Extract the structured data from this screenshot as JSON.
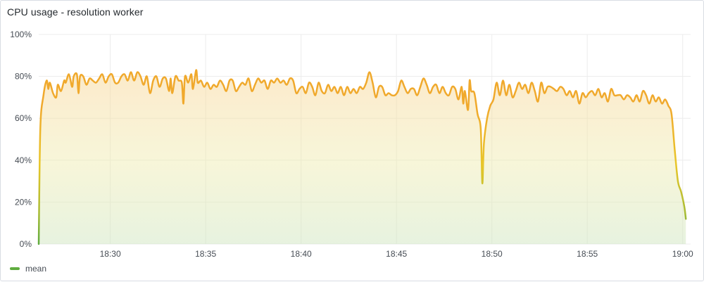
{
  "panel": {
    "title": "CPU usage - resolution worker"
  },
  "chart_data": {
    "type": "area",
    "title": "CPU usage - resolution worker",
    "xlabel": "",
    "ylabel": "",
    "y_unit": "%",
    "ylim": [
      0,
      100
    ],
    "y_ticks": [
      0,
      20,
      40,
      60,
      80,
      100
    ],
    "y_tick_labels": [
      "0%",
      "20%",
      "40%",
      "60%",
      "80%",
      "100%"
    ],
    "x_range": [
      "18:26:15",
      "19:00:25"
    ],
    "x_ticks": [
      "18:30",
      "18:35",
      "18:40",
      "18:45",
      "18:50",
      "18:55",
      "19:00"
    ],
    "grid": true,
    "legend": "bottom-left",
    "colors": {
      "high": "#f0a92c",
      "mid": "#e8c62a",
      "low": "#5fac3f",
      "grid": "#ececec",
      "axis_text": "#464c54"
    },
    "series": [
      {
        "name": "mean",
        "color": "#5fac3f",
        "points": [
          [
            "18:26:15",
            0
          ],
          [
            "18:26:20",
            55
          ],
          [
            "18:26:30",
            71
          ],
          [
            "18:26:40",
            78
          ],
          [
            "18:26:45",
            74
          ],
          [
            "18:26:50",
            77
          ],
          [
            "18:27:00",
            72
          ],
          [
            "18:27:10",
            70
          ],
          [
            "18:27:15",
            76
          ],
          [
            "18:27:25",
            73
          ],
          [
            "18:27:35",
            78
          ],
          [
            "18:27:40",
            77
          ],
          [
            "18:27:50",
            81
          ],
          [
            "18:28:00",
            75
          ],
          [
            "18:28:05",
            80
          ],
          [
            "18:28:15",
            81
          ],
          [
            "18:28:20",
            72
          ],
          [
            "18:28:25",
            80
          ],
          [
            "18:28:35",
            80
          ],
          [
            "18:28:45",
            76
          ],
          [
            "18:28:55",
            79
          ],
          [
            "18:29:05",
            78
          ],
          [
            "18:29:15",
            77
          ],
          [
            "18:29:25",
            79
          ],
          [
            "18:29:35",
            81
          ],
          [
            "18:29:45",
            77
          ],
          [
            "18:29:55",
            80
          ],
          [
            "18:30:05",
            81
          ],
          [
            "18:30:15",
            77
          ],
          [
            "18:30:25",
            77
          ],
          [
            "18:30:35",
            80
          ],
          [
            "18:30:45",
            81
          ],
          [
            "18:30:55",
            78
          ],
          [
            "18:31:05",
            82
          ],
          [
            "18:31:15",
            78
          ],
          [
            "18:31:25",
            82
          ],
          [
            "18:31:35",
            80
          ],
          [
            "18:31:45",
            76
          ],
          [
            "18:31:55",
            80
          ],
          [
            "18:32:05",
            72
          ],
          [
            "18:32:15",
            78
          ],
          [
            "18:32:25",
            80
          ],
          [
            "18:32:35",
            75
          ],
          [
            "18:32:45",
            79
          ],
          [
            "18:32:55",
            79
          ],
          [
            "18:33:05",
            73
          ],
          [
            "18:33:10",
            79
          ],
          [
            "18:33:15",
            72
          ],
          [
            "18:33:25",
            80
          ],
          [
            "18:33:35",
            78
          ],
          [
            "18:33:45",
            77
          ],
          [
            "18:33:50",
            67
          ],
          [
            "18:33:55",
            80
          ],
          [
            "18:34:05",
            77
          ],
          [
            "18:34:15",
            81
          ],
          [
            "18:34:20",
            74
          ],
          [
            "18:34:30",
            83
          ],
          [
            "18:34:35",
            77
          ],
          [
            "18:34:45",
            78
          ],
          [
            "18:34:55",
            75
          ],
          [
            "18:35:05",
            77
          ],
          [
            "18:35:15",
            74
          ],
          [
            "18:35:25",
            76
          ],
          [
            "18:35:35",
            75
          ],
          [
            "18:35:45",
            78
          ],
          [
            "18:35:55",
            76
          ],
          [
            "18:36:05",
            73
          ],
          [
            "18:36:15",
            78
          ],
          [
            "18:36:25",
            78
          ],
          [
            "18:36:35",
            73
          ],
          [
            "18:36:45",
            75
          ],
          [
            "18:36:55",
            77
          ],
          [
            "18:37:05",
            76
          ],
          [
            "18:37:15",
            79
          ],
          [
            "18:37:25",
            73
          ],
          [
            "18:37:35",
            76
          ],
          [
            "18:37:45",
            79
          ],
          [
            "18:37:55",
            77
          ],
          [
            "18:38:05",
            78
          ],
          [
            "18:38:15",
            74
          ],
          [
            "18:38:25",
            78
          ],
          [
            "18:38:35",
            77
          ],
          [
            "18:38:45",
            79
          ],
          [
            "18:38:55",
            77
          ],
          [
            "18:39:05",
            78
          ],
          [
            "18:39:15",
            76
          ],
          [
            "18:39:25",
            79
          ],
          [
            "18:39:35",
            78
          ],
          [
            "18:39:45",
            72
          ],
          [
            "18:39:55",
            74
          ],
          [
            "18:40:05",
            75
          ],
          [
            "18:40:15",
            72
          ],
          [
            "18:40:25",
            77
          ],
          [
            "18:40:35",
            75
          ],
          [
            "18:40:45",
            71
          ],
          [
            "18:40:55",
            77
          ],
          [
            "18:41:05",
            73
          ],
          [
            "18:41:15",
            72
          ],
          [
            "18:41:25",
            76
          ],
          [
            "18:41:35",
            73
          ],
          [
            "18:41:45",
            75
          ],
          [
            "18:41:55",
            72
          ],
          [
            "18:42:05",
            75
          ],
          [
            "18:42:15",
            71
          ],
          [
            "18:42:25",
            75
          ],
          [
            "18:42:35",
            72
          ],
          [
            "18:42:45",
            74
          ],
          [
            "18:42:55",
            72
          ],
          [
            "18:43:05",
            75
          ],
          [
            "18:43:15",
            74
          ],
          [
            "18:43:25",
            77
          ],
          [
            "18:43:35",
            82
          ],
          [
            "18:43:45",
            77
          ],
          [
            "18:43:55",
            70
          ],
          [
            "18:44:05",
            75
          ],
          [
            "18:44:15",
            75
          ],
          [
            "18:44:25",
            71
          ],
          [
            "18:44:35",
            72
          ],
          [
            "18:44:45",
            71
          ],
          [
            "18:44:55",
            71
          ],
          [
            "18:45:05",
            73
          ],
          [
            "18:45:15",
            78
          ],
          [
            "18:45:25",
            75
          ],
          [
            "18:45:35",
            72
          ],
          [
            "18:45:45",
            74
          ],
          [
            "18:45:55",
            74
          ],
          [
            "18:46:05",
            71
          ],
          [
            "18:46:15",
            75
          ],
          [
            "18:46:25",
            79
          ],
          [
            "18:46:35",
            76
          ],
          [
            "18:46:45",
            72
          ],
          [
            "18:46:55",
            75
          ],
          [
            "18:47:05",
            76
          ],
          [
            "18:47:15",
            72
          ],
          [
            "18:47:25",
            75
          ],
          [
            "18:47:35",
            72
          ],
          [
            "18:47:45",
            71
          ],
          [
            "18:47:55",
            75
          ],
          [
            "18:48:05",
            74
          ],
          [
            "18:48:15",
            69
          ],
          [
            "18:48:25",
            75
          ],
          [
            "18:48:30",
            67
          ],
          [
            "18:48:35",
            73
          ],
          [
            "18:48:45",
            64
          ],
          [
            "18:48:50",
            78
          ],
          [
            "18:48:55",
            73
          ],
          [
            "18:49:05",
            72
          ],
          [
            "18:49:15",
            62
          ],
          [
            "18:49:25",
            55
          ],
          [
            "18:49:30",
            29
          ],
          [
            "18:49:35",
            48
          ],
          [
            "18:49:45",
            60
          ],
          [
            "18:49:55",
            66
          ],
          [
            "18:50:05",
            69
          ],
          [
            "18:50:15",
            77
          ],
          [
            "18:50:25",
            71
          ],
          [
            "18:50:35",
            78
          ],
          [
            "18:50:45",
            71
          ],
          [
            "18:50:55",
            76
          ],
          [
            "18:51:05",
            70
          ],
          [
            "18:51:15",
            73
          ],
          [
            "18:51:25",
            77
          ],
          [
            "18:51:35",
            74
          ],
          [
            "18:51:45",
            76
          ],
          [
            "18:51:55",
            72
          ],
          [
            "18:52:05",
            77
          ],
          [
            "18:52:15",
            73
          ],
          [
            "18:52:25",
            68
          ],
          [
            "18:52:35",
            77
          ],
          [
            "18:52:45",
            72
          ],
          [
            "18:52:55",
            75
          ],
          [
            "18:53:05",
            75
          ],
          [
            "18:53:15",
            74
          ],
          [
            "18:53:25",
            73
          ],
          [
            "18:53:35",
            75
          ],
          [
            "18:53:45",
            74
          ],
          [
            "18:53:55",
            71
          ],
          [
            "18:54:05",
            73
          ],
          [
            "18:54:15",
            70
          ],
          [
            "18:54:25",
            73
          ],
          [
            "18:54:35",
            67
          ],
          [
            "18:54:45",
            72
          ],
          [
            "18:54:55",
            70
          ],
          [
            "18:55:05",
            72
          ],
          [
            "18:55:15",
            73
          ],
          [
            "18:55:25",
            71
          ],
          [
            "18:55:35",
            74
          ],
          [
            "18:55:45",
            70
          ],
          [
            "18:55:55",
            72
          ],
          [
            "18:56:05",
            68
          ],
          [
            "18:56:15",
            74
          ],
          [
            "18:56:25",
            71
          ],
          [
            "18:56:35",
            71
          ],
          [
            "18:56:45",
            71
          ],
          [
            "18:56:55",
            69
          ],
          [
            "18:57:05",
            71
          ],
          [
            "18:57:15",
            70
          ],
          [
            "18:57:25",
            68
          ],
          [
            "18:57:35",
            71
          ],
          [
            "18:57:45",
            68
          ],
          [
            "18:57:55",
            73
          ],
          [
            "18:58:05",
            71
          ],
          [
            "18:58:15",
            67
          ],
          [
            "18:58:25",
            71
          ],
          [
            "18:58:35",
            68
          ],
          [
            "18:58:45",
            70
          ],
          [
            "18:58:55",
            67
          ],
          [
            "18:59:05",
            69
          ],
          [
            "18:59:15",
            66
          ],
          [
            "18:59:25",
            62
          ],
          [
            "18:59:35",
            45
          ],
          [
            "18:59:45",
            30
          ],
          [
            "18:59:55",
            25
          ],
          [
            "19:00:05",
            18
          ],
          [
            "19:00:10",
            12
          ]
        ]
      }
    ]
  }
}
